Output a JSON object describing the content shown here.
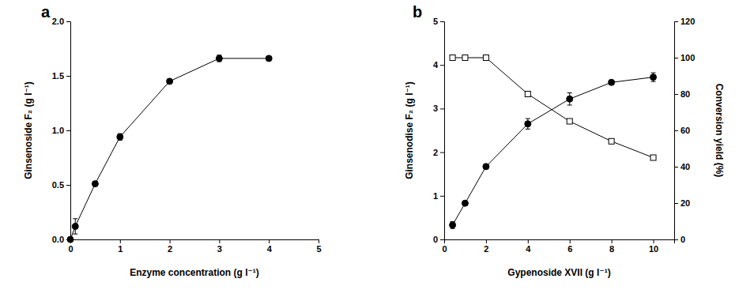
{
  "chart_data": [
    {
      "type": "line",
      "title": "a",
      "x_label": "Enzyme concentration (g l⁻¹)",
      "y_label": "Ginsenoside F₂ (g l⁻¹)",
      "x": [
        0,
        0.1,
        0.5,
        1,
        2,
        3,
        4
      ],
      "xlim": [
        0,
        5
      ],
      "xticks": [
        0,
        1,
        2,
        3,
        4,
        5
      ],
      "ylim": [
        0,
        2
      ],
      "yticks": [
        {
          "value": 0,
          "label": "0.0"
        },
        0.5,
        {
          "value": 1,
          "label": "1.0"
        },
        1.5,
        {
          "value": 2,
          "label": "2.0"
        }
      ],
      "series": [
        {
          "color": "#000000",
          "marker": "circle",
          "values": [
            0,
            0.12,
            0.51,
            0.94,
            1.45,
            1.66,
            1.66
          ],
          "errors": [
            0,
            0.07,
            0.02,
            0.03,
            0.01,
            0.03,
            0.01
          ]
        }
      ]
    },
    {
      "type": "line",
      "title": "b",
      "x_label": "Gypenoside XVII (g l⁻¹)",
      "y_label": "Ginsenodise F₂ (g l⁻¹)",
      "y2_label": "Conversion yield (%)",
      "x": [
        0.4,
        1,
        2,
        4,
        6,
        8,
        10
      ],
      "xlim": [
        0,
        11
      ],
      "xticks": [
        0,
        2,
        4,
        6,
        8,
        10
      ],
      "ylim": [
        0,
        5
      ],
      "yticks": [
        0,
        1,
        2,
        3,
        4,
        5
      ],
      "y2lim": [
        0,
        120
      ],
      "y2ticks": [
        0,
        20,
        40,
        60,
        80,
        100,
        120
      ],
      "series": [
        {
          "color": "#000000",
          "marker": "circle",
          "values": [
            0.33,
            0.83,
            1.67,
            2.65,
            3.22,
            3.6,
            3.72
          ],
          "errors": [
            0.08,
            0.03,
            0.05,
            0.12,
            0.14,
            0.05,
            0.1
          ]
        },
        {
          "color": "#000000",
          "marker": "open-square",
          "axis": "y2",
          "values": [
            100,
            100,
            100,
            80,
            65,
            54,
            45
          ]
        }
      ]
    }
  ]
}
